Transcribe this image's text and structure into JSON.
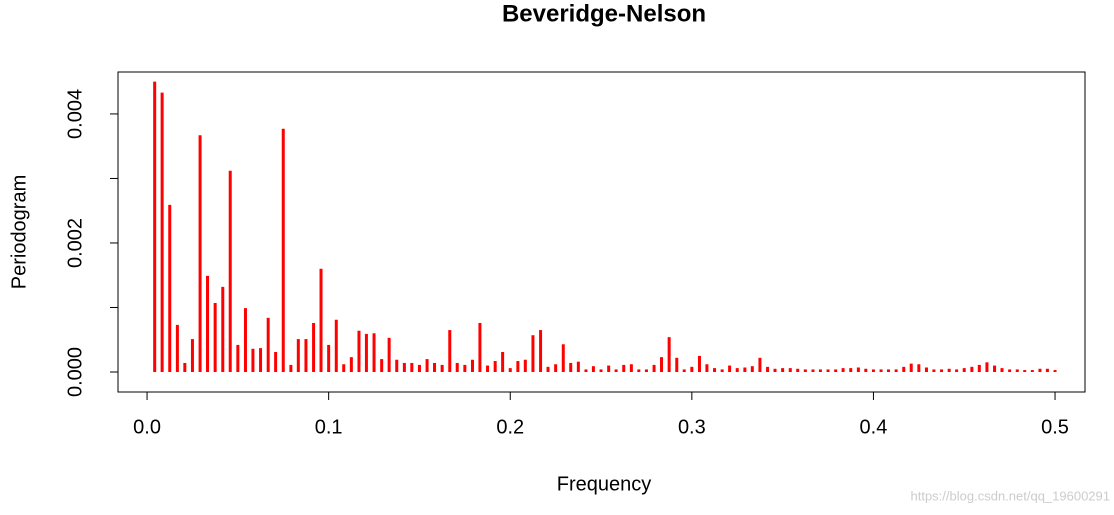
{
  "chart_data": {
    "type": "spike",
    "title": "Beveridge-Nelson",
    "x_label": "Frequency",
    "y_label": "Periodogram",
    "watermark": "https://blog.csdn.net/qq_19600291",
    "color": "#ff0000",
    "xlim": [
      -0.016,
      0.5165
    ],
    "ylim": [
      -0.00031,
      0.00465
    ],
    "xticks": [
      {
        "value": 0,
        "label": "0.0"
      },
      0.1,
      0.2,
      0.3,
      0.4,
      0.5
    ],
    "yticks": [
      {
        "value": 0,
        "label": "0.000"
      },
      {
        "value": 0.001,
        "label": null
      },
      {
        "value": 0.002,
        "label": "0.002"
      },
      {
        "value": 0.003,
        "label": null
      },
      {
        "value": 0.004,
        "label": "0.004"
      }
    ],
    "x": [
      0.0042,
      0.0083,
      0.0125,
      0.0167,
      0.0208,
      0.025,
      0.0292,
      0.0333,
      0.0375,
      0.0417,
      0.0458,
      0.05,
      0.0542,
      0.0583,
      0.0625,
      0.0667,
      0.0708,
      0.075,
      0.0792,
      0.0833,
      0.0875,
      0.0917,
      0.0958,
      0.1,
      0.1042,
      0.1083,
      0.1125,
      0.1167,
      0.1208,
      0.125,
      0.1292,
      0.1333,
      0.1375,
      0.1417,
      0.1458,
      0.15,
      0.1542,
      0.1583,
      0.1625,
      0.1667,
      0.1708,
      0.175,
      0.1792,
      0.1833,
      0.1875,
      0.1917,
      0.1958,
      0.2,
      0.2042,
      0.2083,
      0.2125,
      0.2167,
      0.2208,
      0.225,
      0.2292,
      0.2333,
      0.2375,
      0.2417,
      0.2458,
      0.25,
      0.2542,
      0.2583,
      0.2625,
      0.2667,
      0.2708,
      0.275,
      0.2792,
      0.2833,
      0.2875,
      0.2917,
      0.2958,
      0.3,
      0.3042,
      0.3083,
      0.3125,
      0.3167,
      0.3208,
      0.325,
      0.3292,
      0.3333,
      0.3375,
      0.3417,
      0.3458,
      0.35,
      0.3542,
      0.3583,
      0.3625,
      0.3667,
      0.3708,
      0.375,
      0.3792,
      0.3833,
      0.3875,
      0.3917,
      0.3958,
      0.4,
      0.4042,
      0.4083,
      0.4125,
      0.4167,
      0.4208,
      0.425,
      0.4292,
      0.4333,
      0.4375,
      0.4417,
      0.4458,
      0.45,
      0.4542,
      0.4583,
      0.4625,
      0.4667,
      0.4708,
      0.475,
      0.4792,
      0.4833,
      0.4875,
      0.4917,
      0.4958,
      0.5
    ],
    "values": [
      0.0045,
      0.00433,
      0.00259,
      0.00073,
      0.00014,
      0.00051,
      0.00367,
      0.00149,
      0.00107,
      0.00132,
      0.00312,
      0.00042,
      0.00099,
      0.00036,
      0.00037,
      0.00084,
      0.00031,
      0.00377,
      0.00011,
      0.00051,
      0.00051,
      0.00076,
      0.0016,
      0.00042,
      0.00081,
      0.00012,
      0.00023,
      0.00064,
      0.00059,
      0.0006,
      0.0002,
      0.00053,
      0.00019,
      0.00014,
      0.00014,
      0.00011,
      0.0002,
      0.00014,
      0.00011,
      0.00065,
      0.00014,
      0.00011,
      0.00019,
      0.00076,
      0.0001,
      0.00017,
      0.00031,
      6e-05,
      0.00017,
      0.00019,
      0.00057,
      0.00065,
      8e-05,
      0.00012,
      0.00043,
      0.00014,
      0.00016,
      4e-05,
      9e-05,
      4e-05,
      0.0001,
      4e-05,
      0.00011,
      0.00012,
      4e-05,
      4e-05,
      0.00011,
      0.00023,
      0.00054,
      0.00022,
      4e-05,
      8e-05,
      0.00025,
      0.00012,
      6e-05,
      4e-05,
      0.0001,
      6e-05,
      7e-05,
      9e-05,
      0.00022,
      8e-05,
      5e-05,
      6e-05,
      6e-05,
      5e-05,
      4e-05,
      4e-05,
      4e-05,
      4e-05,
      4e-05,
      6e-05,
      6e-05,
      7e-05,
      5e-05,
      4e-05,
      4e-05,
      4e-05,
      4e-05,
      8e-05,
      0.00013,
      0.00012,
      7e-05,
      4e-05,
      4e-05,
      5e-05,
      4e-05,
      6e-05,
      8e-05,
      0.00011,
      0.00015,
      0.0001,
      6e-05,
      4e-05,
      4e-05,
      3e-05,
      3e-05,
      5e-05,
      5e-05,
      3e-05
    ]
  }
}
